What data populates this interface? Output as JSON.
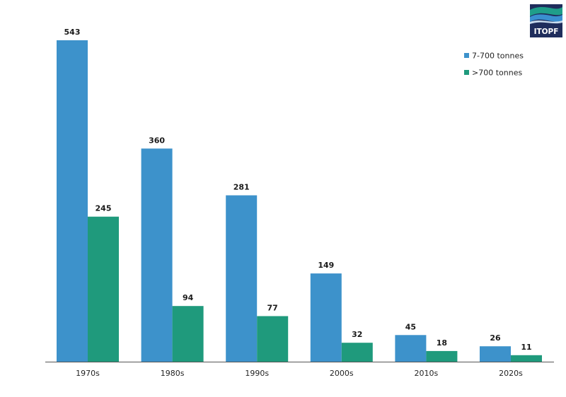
{
  "logo": {
    "text": "ITOPF",
    "colors": {
      "navy": "#1f2d5c",
      "teal": "#1f9e8a",
      "blue": "#3a8fd0"
    }
  },
  "chart_data": {
    "type": "bar",
    "categories": [
      "1970s",
      "1980s",
      "1990s",
      "2000s",
      "2010s",
      "2020s"
    ],
    "series": [
      {
        "name": "7-700 tonnes",
        "values": [
          543,
          360,
          281,
          149,
          45,
          26
        ],
        "color": "#3d92cb"
      },
      {
        "name": ">700 tonnes",
        "values": [
          245,
          94,
          77,
          32,
          18,
          11
        ],
        "color": "#1f9a7c"
      }
    ],
    "ylim": [
      0,
      543
    ],
    "grid": false,
    "legend_position": "top-right",
    "data_labels": true
  }
}
